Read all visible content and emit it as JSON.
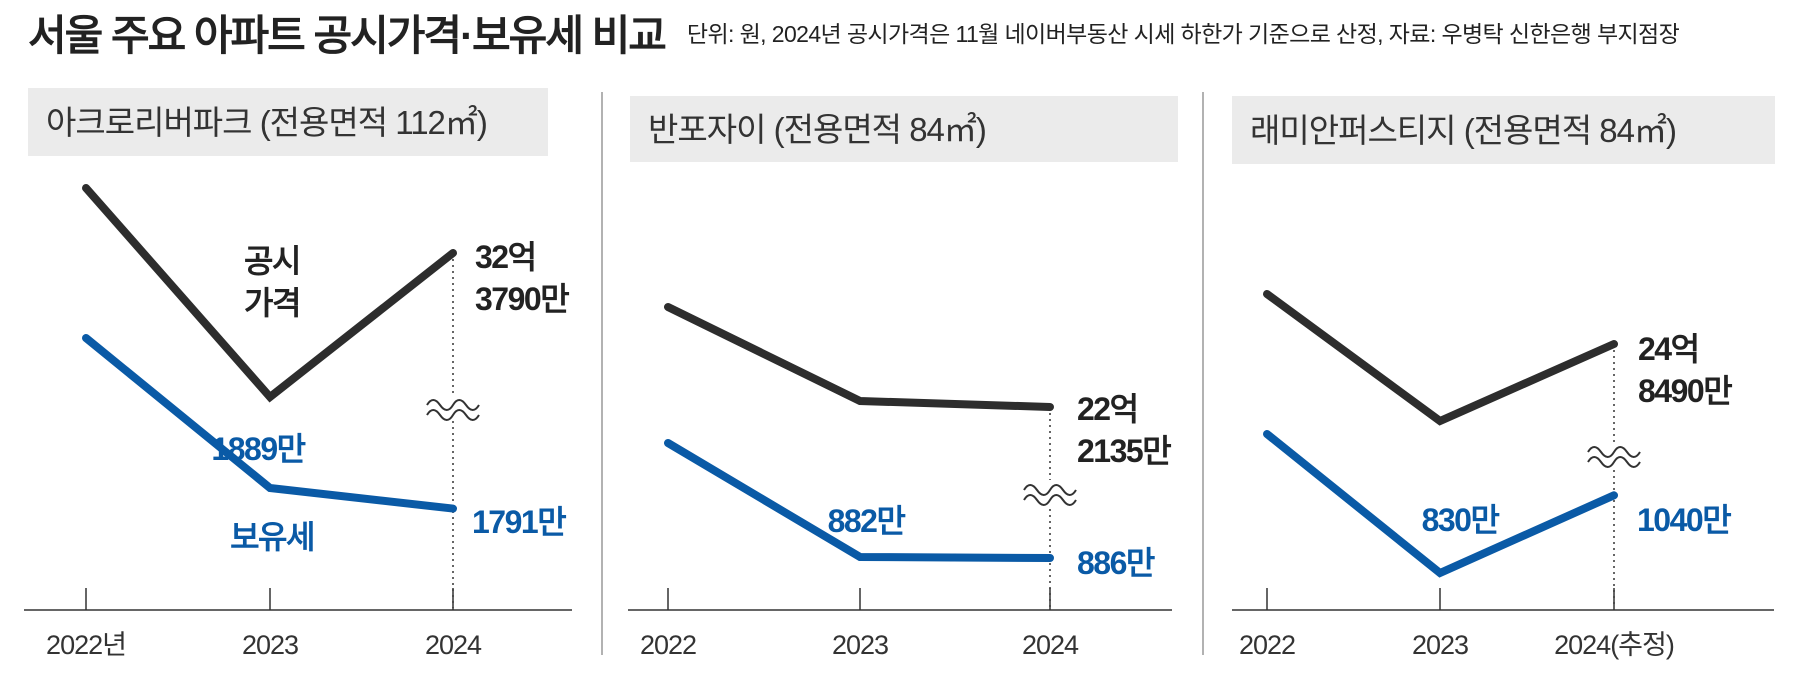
{
  "header": {
    "title": "서울 주요 아파트 공시가격·보유세 비교",
    "subtitle": "단위: 원, 2024년 공시가격은 11월 네이버부동산 시세 하한가 기준으로 산정, 자료: 우병탁 신한은행 부지점장"
  },
  "colors": {
    "price": "#2d2d2d",
    "tax": "#0a5aa6",
    "panel_title_bg": "#ebebeb",
    "axis": "#333333",
    "divider": "#999999"
  },
  "legend_labels": {
    "price": "공시\n가격",
    "tax": "보유세"
  },
  "chart_data": [
    {
      "type": "line",
      "title": "아크로리버파크 (전용면적 112㎡)",
      "categories": [
        "2022년",
        "2023",
        "2024"
      ],
      "broken_axis": true,
      "series": [
        {
          "name": "공시가격",
          "values": [
            null,
            null,
            323790
          ],
          "point_labels": [
            "",
            "",
            "32억\n3790만"
          ]
        },
        {
          "name": "보유세",
          "values": [
            null,
            1889,
            1791
          ],
          "point_labels": [
            "",
            "1889만",
            "1791만"
          ]
        }
      ]
    },
    {
      "type": "line",
      "title": "반포자이 (전용면적 84㎡)",
      "categories": [
        "2022",
        "2023",
        "2024"
      ],
      "broken_axis": true,
      "series": [
        {
          "name": "공시가격",
          "values": [
            null,
            null,
            222135
          ],
          "point_labels": [
            "",
            "",
            "22억\n2135만"
          ]
        },
        {
          "name": "보유세",
          "values": [
            null,
            882,
            886
          ],
          "point_labels": [
            "",
            "882만",
            "886만"
          ]
        }
      ]
    },
    {
      "type": "line",
      "title": "래미안퍼스티지 (전용면적 84㎡)",
      "categories": [
        "2022",
        "2023",
        "2024(추정)"
      ],
      "broken_axis": true,
      "series": [
        {
          "name": "공시가격",
          "values": [
            null,
            null,
            248490
          ],
          "point_labels": [
            "",
            "",
            "24억\n8490만"
          ]
        },
        {
          "name": "보유세",
          "values": [
            null,
            830,
            1040
          ],
          "point_labels": [
            "",
            "830만",
            "1040만"
          ]
        }
      ]
    }
  ]
}
